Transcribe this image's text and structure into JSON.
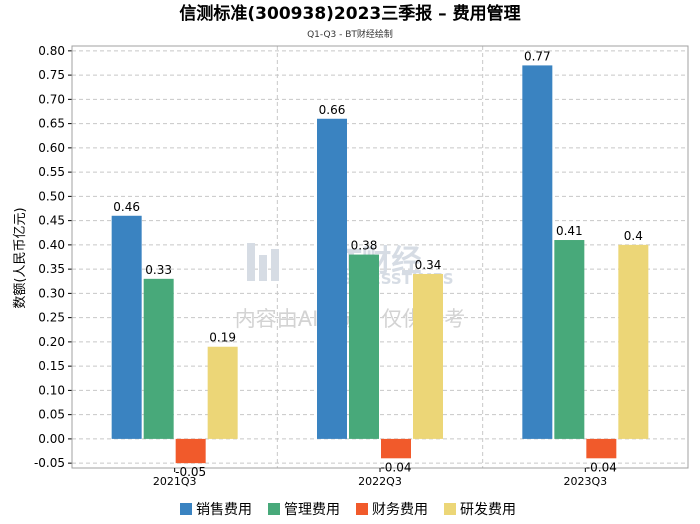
{
  "chart_data": {
    "type": "bar",
    "title": "信测标准(300938)2023三季报 – 费用管理",
    "subtitle": "Q1-Q3 - BT财经绘制",
    "xlabel": "",
    "ylabel": "数额(人民币亿元)",
    "ylim": [
      -0.05,
      0.8
    ],
    "yticks": [
      "0.80",
      "0.75",
      "0.70",
      "0.65",
      "0.60",
      "0.55",
      "0.50",
      "0.45",
      "0.40",
      "0.35",
      "0.30",
      "0.25",
      "0.20",
      "0.15",
      "0.10",
      "0.05",
      "0.00",
      "-0.05"
    ],
    "categories": [
      "2021Q3",
      "2022Q3",
      "2023Q3"
    ],
    "series": [
      {
        "name": "销售费用",
        "color": "#3a83c1",
        "values": [
          0.46,
          0.66,
          0.77
        ],
        "labels": [
          "0.46",
          "0.66",
          "0.77"
        ]
      },
      {
        "name": "管理费用",
        "color": "#48a97a",
        "values": [
          0.33,
          0.38,
          0.41
        ],
        "labels": [
          "0.33",
          "0.38",
          "0.41"
        ]
      },
      {
        "name": "财务费用",
        "color": "#f15a2b",
        "values": [
          -0.05,
          -0.04,
          -0.04
        ],
        "labels": [
          "-0.05",
          "-0.04",
          "-0.04"
        ]
      },
      {
        "name": "研发费用",
        "color": "#ecd677",
        "values": [
          0.19,
          0.34,
          0.4
        ],
        "labels": [
          "0.19",
          "0.34",
          "0.4"
        ]
      }
    ],
    "grid": true,
    "legend": "bottom"
  },
  "watermark": {
    "brand": "BT财经",
    "brand_en": "BUSINESSTIMES",
    "notice": "内容由AI生成，仅供参考"
  }
}
